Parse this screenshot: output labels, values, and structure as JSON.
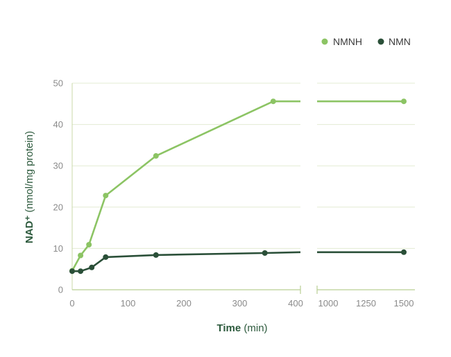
{
  "chart_data": {
    "type": "line",
    "xlabel_bold": "Time",
    "xlabel_rest": " (min)",
    "ylabel_bold": "NAD⁺",
    "ylabel_rest": " (nmol/mg protein)",
    "ylim": [
      0,
      50
    ],
    "y_ticks": [
      "0",
      "10",
      "20",
      "30",
      "40",
      "50"
    ],
    "x_segments": [
      {
        "range": [
          0,
          410
        ],
        "ticks": [
          "0",
          "100",
          "200",
          "300",
          "400"
        ]
      },
      {
        "range": [
          900,
          1550
        ],
        "ticks": [
          "1000",
          "1250",
          "1500"
        ]
      }
    ],
    "legend_position": "top-right",
    "series": [
      {
        "name": "NMNH",
        "color": "#8cc464",
        "x": [
          0,
          15,
          30,
          60,
          150,
          360,
          1500
        ],
        "y": [
          4.6,
          8.3,
          10.9,
          22.8,
          32.4,
          45.6,
          45.6
        ]
      },
      {
        "name": "NMN",
        "color": "#2a4f38",
        "x": [
          0,
          15,
          35,
          60,
          150,
          345,
          1500
        ],
        "y": [
          4.5,
          4.5,
          5.4,
          7.9,
          8.4,
          8.9,
          9.1
        ]
      }
    ]
  }
}
